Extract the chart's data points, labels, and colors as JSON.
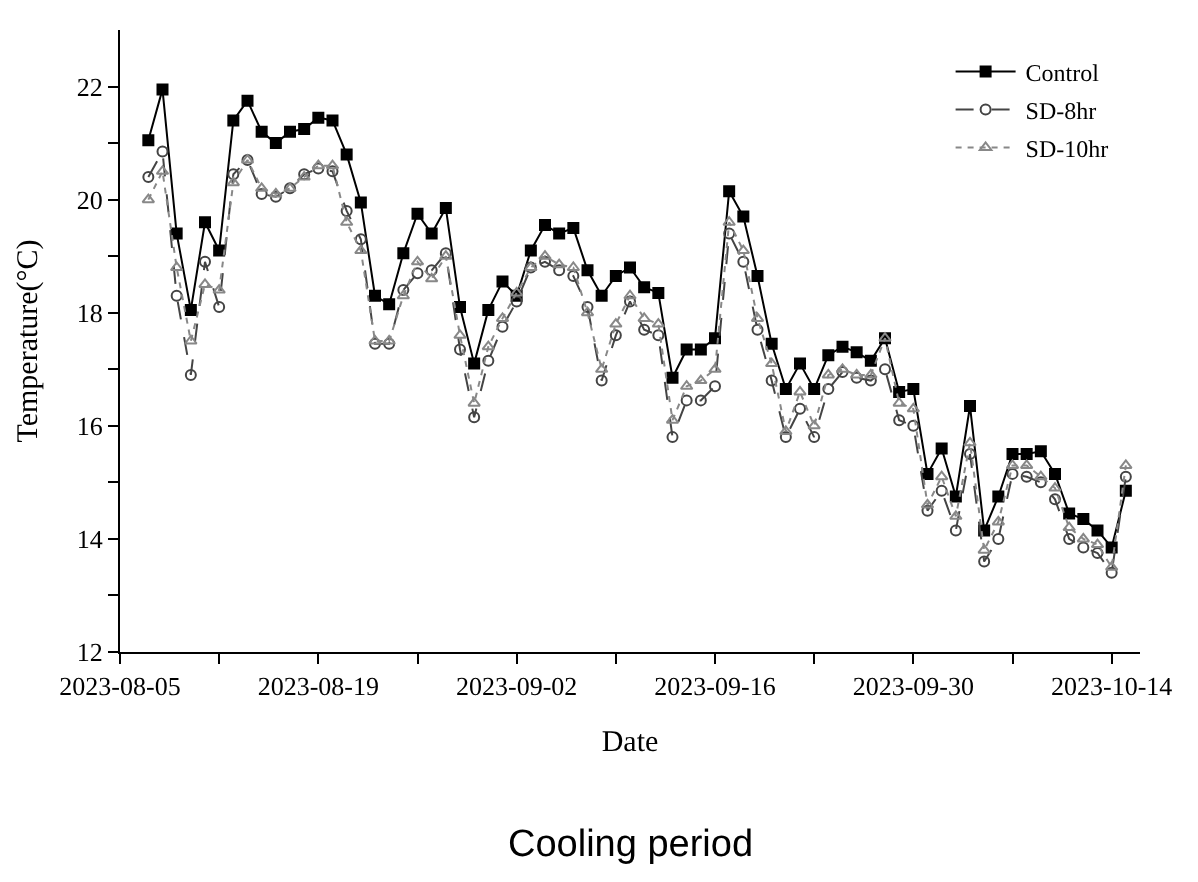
{
  "chart_data": {
    "type": "line",
    "xlabel": "Date",
    "ylabel": "Temperature(°C)",
    "annotations": [
      "Cooling period"
    ],
    "x": [
      "2023-08-07",
      "2023-08-08",
      "2023-08-09",
      "2023-08-10",
      "2023-08-11",
      "2023-08-12",
      "2023-08-13",
      "2023-08-14",
      "2023-08-15",
      "2023-08-16",
      "2023-08-17",
      "2023-08-18",
      "2023-08-19",
      "2023-08-20",
      "2023-08-21",
      "2023-08-22",
      "2023-08-23",
      "2023-08-24",
      "2023-08-25",
      "2023-08-26",
      "2023-08-27",
      "2023-08-28",
      "2023-08-29",
      "2023-08-30",
      "2023-08-31",
      "2023-09-01",
      "2023-09-02",
      "2023-09-03",
      "2023-09-04",
      "2023-09-05",
      "2023-09-06",
      "2023-09-07",
      "2023-09-08",
      "2023-09-09",
      "2023-09-10",
      "2023-09-11",
      "2023-09-12",
      "2023-09-13",
      "2023-09-14",
      "2023-09-15",
      "2023-09-16",
      "2023-09-17",
      "2023-09-18",
      "2023-09-19",
      "2023-09-20",
      "2023-09-21",
      "2023-09-22",
      "2023-09-23",
      "2023-09-24",
      "2023-09-25",
      "2023-09-26",
      "2023-09-27",
      "2023-09-28",
      "2023-09-29",
      "2023-09-30",
      "2023-10-01",
      "2023-10-02",
      "2023-10-03",
      "2023-10-04",
      "2023-10-05",
      "2023-10-06",
      "2023-10-07",
      "2023-10-08",
      "2023-10-09",
      "2023-10-10",
      "2023-10-11",
      "2023-10-12",
      "2023-10-13",
      "2023-10-14",
      "2023-10-15"
    ],
    "series": [
      {
        "name": "Control",
        "color": "#000000",
        "marker": "square",
        "line_style": "solid",
        "values": [
          21.05,
          21.95,
          19.4,
          18.05,
          19.6,
          19.1,
          21.4,
          21.75,
          21.2,
          21.0,
          21.2,
          21.25,
          21.45,
          21.4,
          20.8,
          19.95,
          18.3,
          18.15,
          19.05,
          19.75,
          19.4,
          19.85,
          18.1,
          17.1,
          18.05,
          18.55,
          18.3,
          19.1,
          19.55,
          19.4,
          19.5,
          18.75,
          18.3,
          18.65,
          18.8,
          18.45,
          18.35,
          16.85,
          17.35,
          17.35,
          17.55,
          20.15,
          19.7,
          18.65,
          17.45,
          16.65,
          17.1,
          16.65,
          17.25,
          17.4,
          17.3,
          17.15,
          17.55,
          16.6,
          16.65,
          15.15,
          15.6,
          14.75,
          16.35,
          14.15,
          14.75,
          15.5,
          15.5,
          15.55,
          15.15,
          14.45,
          14.35,
          14.15,
          13.85,
          14.85
        ]
      },
      {
        "name": "SD-8hr",
        "color": "#444444",
        "marker": "circle",
        "line_style": "dashed",
        "values": [
          20.4,
          20.85,
          18.3,
          16.9,
          18.9,
          18.1,
          20.45,
          20.7,
          20.1,
          20.05,
          20.2,
          20.45,
          20.55,
          20.5,
          19.8,
          19.3,
          17.45,
          17.45,
          18.4,
          18.7,
          18.75,
          19.05,
          17.35,
          16.15,
          17.15,
          17.75,
          18.2,
          18.8,
          18.9,
          18.75,
          18.65,
          18.1,
          16.8,
          17.6,
          18.2,
          17.7,
          17.6,
          15.8,
          16.45,
          16.45,
          16.7,
          19.4,
          18.9,
          17.7,
          16.8,
          15.8,
          16.3,
          15.8,
          16.65,
          16.95,
          16.85,
          16.8,
          17.0,
          16.1,
          16.0,
          14.5,
          14.85,
          14.15,
          15.5,
          13.6,
          14.0,
          15.15,
          15.1,
          15.0,
          14.7,
          14.0,
          13.85,
          13.75,
          13.4,
          15.1
        ]
      },
      {
        "name": "SD-10hr",
        "color": "#888888",
        "marker": "triangle",
        "line_style": "dotted",
        "values": [
          20.0,
          20.5,
          18.8,
          17.5,
          18.5,
          18.4,
          20.3,
          20.7,
          20.2,
          20.1,
          20.2,
          20.4,
          20.6,
          20.6,
          19.6,
          19.1,
          17.5,
          17.5,
          18.3,
          18.9,
          18.6,
          19.0,
          17.6,
          16.4,
          17.4,
          17.9,
          18.35,
          18.8,
          19.0,
          18.85,
          18.8,
          18.0,
          17.0,
          17.8,
          18.3,
          17.9,
          17.8,
          16.1,
          16.7,
          16.8,
          17.0,
          19.6,
          19.1,
          17.9,
          17.1,
          15.9,
          16.6,
          16.0,
          16.9,
          17.0,
          16.9,
          16.9,
          17.55,
          16.4,
          16.3,
          14.6,
          15.1,
          14.4,
          15.7,
          13.8,
          14.3,
          15.3,
          15.3,
          15.1,
          14.9,
          14.2,
          14.0,
          13.9,
          13.5,
          15.3
        ]
      }
    ],
    "xlim": [
      "2023-08-05",
      "2023-10-16"
    ],
    "xticks": [
      {
        "value": "2023-08-05",
        "label": "2023-08-05"
      },
      {
        "value": "2023-08-12",
        "label": null
      },
      {
        "value": "2023-08-19",
        "label": "2023-08-19"
      },
      {
        "value": "2023-08-26",
        "label": null
      },
      {
        "value": "2023-09-02",
        "label": "2023-09-02"
      },
      {
        "value": "2023-09-09",
        "label": null
      },
      {
        "value": "2023-09-16",
        "label": "2023-09-16"
      },
      {
        "value": "2023-09-23",
        "label": null
      },
      {
        "value": "2023-09-30",
        "label": "2023-09-30"
      },
      {
        "value": "2023-10-07",
        "label": null
      },
      {
        "value": "2023-10-14",
        "label": "2023-10-14"
      }
    ],
    "ylim": [
      12,
      23
    ],
    "yticks": [
      12,
      {
        "value": 13,
        "label": null
      },
      14,
      {
        "value": 15,
        "label": null
      },
      16,
      {
        "value": 17,
        "label": null
      },
      18,
      {
        "value": 19,
        "label": null
      },
      20,
      {
        "value": 21,
        "label": null
      },
      22
    ],
    "legend": "top right"
  }
}
